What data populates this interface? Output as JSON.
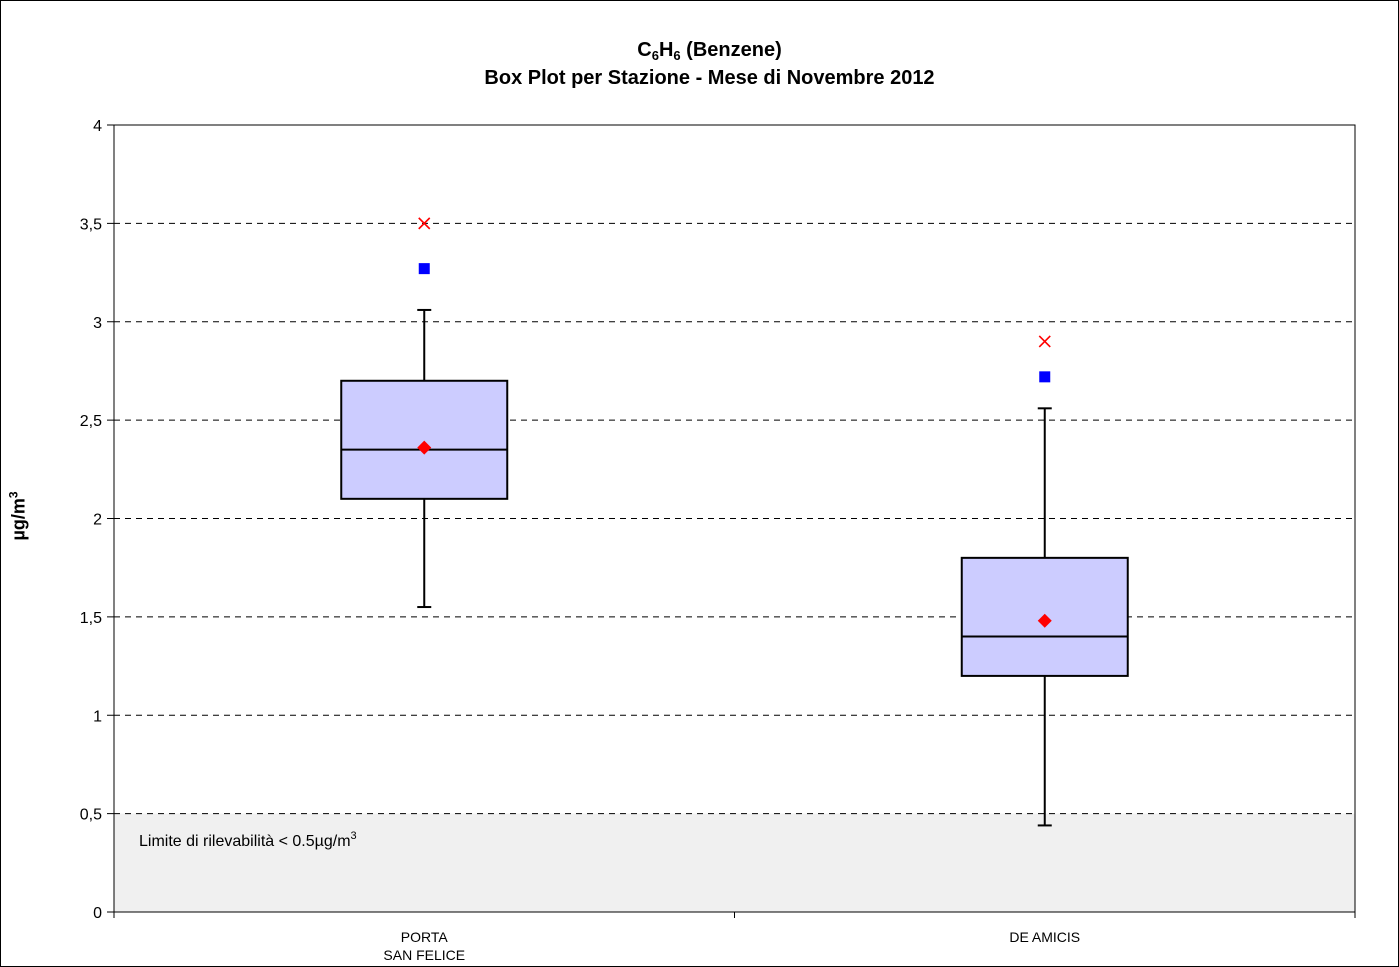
{
  "chart_data": {
    "type": "boxplot",
    "title_formula": {
      "c": "C",
      "c_sub": "6",
      "h": "H",
      "h_sub": "6",
      "rest": " (Benzene)"
    },
    "subtitle": "Box Plot per Stazione - Mese di Novembre 2012",
    "ylabel": {
      "text": "µg/m",
      "sup": "3"
    },
    "ylim": [
      0,
      4
    ],
    "yticks": [
      0,
      0.5,
      1,
      1.5,
      2,
      2.5,
      3,
      3.5,
      4
    ],
    "ytick_labels": [
      "0",
      "0,5",
      "1",
      "1,5",
      "2",
      "2,5",
      "3",
      "3,5",
      "4"
    ],
    "grid": "dashed horizontal",
    "stations": [
      {
        "label_lines": [
          "PORTA",
          "SAN FELICE"
        ],
        "whisker_low": 1.55,
        "q1": 2.1,
        "median": 2.35,
        "q3": 2.7,
        "whisker_high": 3.06,
        "mean": 2.36,
        "square_marker": 3.27,
        "cross_marker": 3.5
      },
      {
        "label_lines": [
          "DE AMICIS"
        ],
        "whisker_low": 0.44,
        "q1": 1.2,
        "median": 1.4,
        "q3": 1.8,
        "whisker_high": 2.56,
        "mean": 1.48,
        "square_marker": 2.72,
        "cross_marker": 2.9
      }
    ],
    "detection_limit": {
      "value": 0.5,
      "label": "Limite di rilevabilità < 0.5µg/m",
      "label_sup": "3",
      "fill": "#f0f0f0"
    },
    "colors": {
      "box_fill": "#ccccff",
      "box_stroke": "#000000",
      "mean_marker": "#ff0000",
      "square_marker": "#0000ff",
      "cross_marker": "#ff0000",
      "grid": "#000000"
    }
  }
}
